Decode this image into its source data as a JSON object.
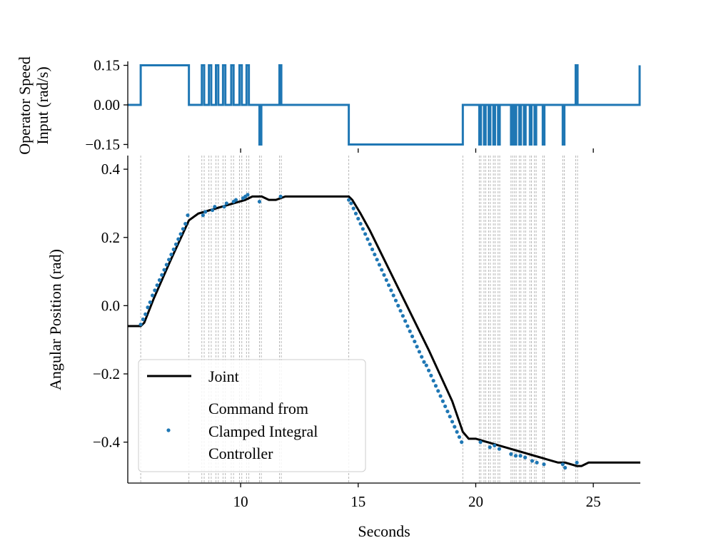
{
  "chart_data": [
    {
      "type": "line",
      "panel": "top",
      "ylabel_lines": [
        "Operator Speed",
        "Input (rad/s)"
      ],
      "xlim": [
        5.2,
        27
      ],
      "ylim": [
        -0.165,
        0.165
      ],
      "yticks": [
        0.15,
        0.0,
        -0.15
      ],
      "ytick_labels": [
        "0.15",
        "0.00",
        "−0.15"
      ],
      "xticks": [
        10,
        15,
        20,
        25
      ],
      "color": "#1f77b4",
      "series": [
        {
          "name": "Operator Speed Input",
          "x": [
            5.2,
            5.75,
            5.75,
            7.8,
            7.8,
            8.35,
            8.35,
            8.45,
            8.45,
            8.65,
            8.65,
            8.75,
            8.75,
            8.95,
            8.95,
            9.05,
            9.05,
            9.25,
            9.25,
            9.35,
            9.35,
            9.6,
            9.6,
            9.7,
            9.7,
            9.95,
            9.95,
            10.05,
            10.05,
            10.25,
            10.25,
            10.35,
            10.35,
            10.8,
            10.8,
            10.88,
            10.88,
            11.65,
            11.65,
            11.73,
            11.73,
            14.6,
            14.6,
            19.45,
            19.45,
            20.15,
            20.15,
            20.22,
            20.22,
            20.35,
            20.35,
            20.42,
            20.42,
            20.55,
            20.55,
            20.62,
            20.62,
            20.75,
            20.75,
            20.82,
            20.82,
            20.95,
            20.95,
            21.02,
            21.02,
            21.5,
            21.5,
            21.57,
            21.57,
            21.65,
            21.65,
            21.72,
            21.72,
            21.85,
            21.85,
            21.92,
            21.92,
            22.05,
            22.05,
            22.12,
            22.12,
            22.3,
            22.3,
            22.37,
            22.37,
            22.5,
            22.5,
            22.57,
            22.57,
            22.85,
            22.85,
            22.92,
            22.92,
            23.7,
            23.7,
            23.77,
            23.77,
            24.25,
            24.25,
            24.33,
            24.33,
            26.97,
            26.97
          ],
          "y": [
            0,
            0,
            0.15,
            0.15,
            0,
            0,
            0.15,
            0.15,
            0,
            0,
            0.15,
            0.15,
            0,
            0,
            0.15,
            0.15,
            0,
            0,
            0.15,
            0.15,
            0,
            0,
            0.15,
            0.15,
            0,
            0,
            0.15,
            0.15,
            0,
            0,
            0.15,
            0.15,
            0,
            0,
            -0.15,
            -0.15,
            0,
            0,
            0.15,
            0.15,
            0,
            0,
            -0.15,
            -0.15,
            0,
            0,
            -0.15,
            -0.15,
            0,
            0,
            -0.15,
            -0.15,
            0,
            0,
            -0.15,
            -0.15,
            0,
            0,
            -0.15,
            -0.15,
            0,
            0,
            -0.15,
            -0.15,
            0,
            0,
            -0.15,
            -0.15,
            0,
            0,
            -0.15,
            -0.15,
            0,
            0,
            -0.15,
            -0.15,
            0,
            0,
            -0.15,
            -0.15,
            0,
            0,
            -0.15,
            -0.15,
            0,
            0,
            -0.15,
            -0.15,
            0,
            0,
            -0.15,
            -0.15,
            0,
            0,
            -0.15,
            -0.15,
            0,
            0,
            0.15,
            0.15,
            0,
            0,
            0.15
          ]
        }
      ]
    },
    {
      "type": "line",
      "panel": "bottom",
      "xlabel": "Seconds",
      "ylabel": "Angular Position (rad)",
      "xlim": [
        5.2,
        27
      ],
      "ylim": [
        -0.52,
        0.44
      ],
      "xticks": [
        10,
        15,
        20,
        25
      ],
      "xtick_labels": [
        "10",
        "15",
        "20",
        "25"
      ],
      "yticks": [
        0.4,
        0.2,
        0.0,
        -0.2,
        -0.4
      ],
      "ytick_labels": [
        "0.4",
        "0.2",
        "0.0",
        "−0.2",
        "−0.4"
      ],
      "event_lines_x": [
        5.75,
        7.8,
        8.35,
        8.45,
        8.65,
        8.75,
        8.95,
        9.05,
        9.25,
        9.35,
        9.6,
        9.7,
        9.95,
        10.05,
        10.25,
        10.35,
        10.8,
        10.88,
        11.65,
        11.73,
        14.6,
        19.45,
        20.15,
        20.22,
        20.35,
        20.42,
        20.55,
        20.62,
        20.75,
        20.82,
        20.95,
        21.02,
        21.5,
        21.57,
        21.65,
        21.72,
        21.85,
        21.92,
        22.05,
        22.12,
        22.3,
        22.37,
        22.5,
        22.57,
        22.85,
        22.92,
        23.7,
        23.77,
        24.25,
        24.33
      ],
      "series": [
        {
          "name": "Joint",
          "color": "#000000",
          "style": "line",
          "x": [
            5.2,
            5.75,
            5.9,
            6.3,
            7.0,
            7.8,
            8.2,
            8.7,
            9.2,
            9.7,
            10.2,
            10.5,
            10.9,
            11.2,
            11.5,
            11.9,
            12.5,
            14.6,
            14.75,
            15.1,
            15.5,
            16.0,
            17.0,
            18.0,
            19.0,
            19.45,
            19.7,
            20.0,
            20.5,
            21.0,
            21.5,
            22.0,
            22.5,
            23.0,
            23.5,
            23.8,
            24.3,
            24.5,
            24.8,
            27.0
          ],
          "y": [
            -0.06,
            -0.06,
            -0.05,
            0.02,
            0.13,
            0.25,
            0.27,
            0.28,
            0.29,
            0.3,
            0.31,
            0.32,
            0.32,
            0.31,
            0.31,
            0.32,
            0.32,
            0.32,
            0.31,
            0.27,
            0.22,
            0.15,
            0.01,
            -0.13,
            -0.28,
            -0.37,
            -0.39,
            -0.39,
            -0.4,
            -0.41,
            -0.42,
            -0.43,
            -0.44,
            -0.45,
            -0.46,
            -0.46,
            -0.47,
            -0.47,
            -0.46,
            -0.46
          ]
        },
        {
          "name": "Command from Clamped Integral Controller",
          "legend_lines": [
            "Command from",
            "Clamped Integral",
            "Controller"
          ],
          "color": "#1f77b4",
          "style": "points",
          "x": [
            5.75,
            5.85,
            5.95,
            6.05,
            6.15,
            6.25,
            6.35,
            6.45,
            6.55,
            6.65,
            6.75,
            6.85,
            6.95,
            7.05,
            7.15,
            7.25,
            7.35,
            7.45,
            7.55,
            7.65,
            7.75,
            8.4,
            8.5,
            8.8,
            8.9,
            9.3,
            9.4,
            9.7,
            9.8,
            10.1,
            10.2,
            10.3,
            10.8,
            11.7,
            14.6,
            14.7,
            14.8,
            14.9,
            15.0,
            15.1,
            15.2,
            15.3,
            15.4,
            15.5,
            15.6,
            15.7,
            15.8,
            15.9,
            16.0,
            16.1,
            16.2,
            16.3,
            16.4,
            16.5,
            16.6,
            16.7,
            16.8,
            16.9,
            17.0,
            17.1,
            17.2,
            17.3,
            17.4,
            17.5,
            17.6,
            17.7,
            17.8,
            17.9,
            18.0,
            18.1,
            18.2,
            18.3,
            18.4,
            18.5,
            18.6,
            18.7,
            18.8,
            18.9,
            19.0,
            19.1,
            19.2,
            19.3,
            19.4,
            20.2,
            20.6,
            20.8,
            21.0,
            21.5,
            21.7,
            21.9,
            22.1,
            22.4,
            22.6,
            22.9,
            23.7,
            23.8,
            24.3
          ],
          "y": [
            -0.055,
            -0.04,
            -0.025,
            -0.005,
            0.01,
            0.03,
            0.045,
            0.06,
            0.075,
            0.09,
            0.105,
            0.12,
            0.135,
            0.15,
            0.165,
            0.18,
            0.195,
            0.21,
            0.225,
            0.24,
            0.265,
            0.265,
            0.275,
            0.28,
            0.29,
            0.29,
            0.3,
            0.305,
            0.31,
            0.315,
            0.32,
            0.325,
            0.305,
            0.32,
            0.31,
            0.3,
            0.285,
            0.27,
            0.255,
            0.24,
            0.225,
            0.21,
            0.195,
            0.18,
            0.165,
            0.15,
            0.135,
            0.12,
            0.105,
            0.09,
            0.075,
            0.06,
            0.045,
            0.03,
            0.015,
            0.0,
            -0.015,
            -0.03,
            -0.045,
            -0.06,
            -0.075,
            -0.09,
            -0.105,
            -0.12,
            -0.135,
            -0.15,
            -0.165,
            -0.175,
            -0.19,
            -0.205,
            -0.22,
            -0.235,
            -0.25,
            -0.265,
            -0.28,
            -0.295,
            -0.31,
            -0.325,
            -0.34,
            -0.355,
            -0.37,
            -0.385,
            -0.4,
            -0.4,
            -0.415,
            -0.41,
            -0.42,
            -0.435,
            -0.44,
            -0.44,
            -0.445,
            -0.455,
            -0.46,
            -0.465,
            -0.465,
            -0.475,
            -0.46
          ]
        }
      ],
      "legend": {
        "location": "lower-left",
        "entries": [
          "Joint",
          "Command from Clamped Integral Controller"
        ]
      }
    }
  ]
}
